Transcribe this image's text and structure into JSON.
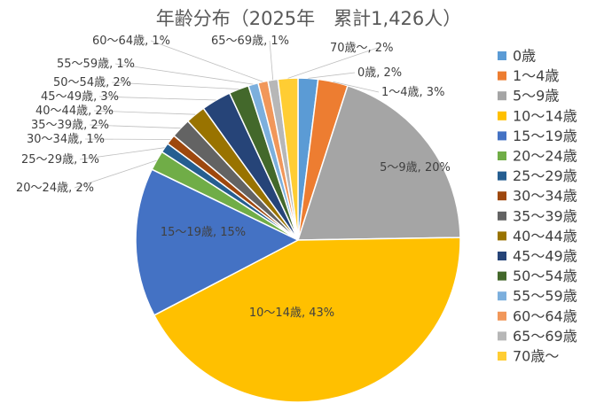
{
  "chart_data": {
    "type": "pie",
    "title": "年齢分布（2025年　累計1,426人）",
    "categories": [
      "0歳",
      "1～4歳",
      "5～9歳",
      "10～14歳",
      "15～19歳",
      "20～24歳",
      "25～29歳",
      "30～34歳",
      "35～39歳",
      "40～44歳",
      "45～49歳",
      "50～54歳",
      "55～59歳",
      "60～64歳",
      "65～69歳",
      "70歳～"
    ],
    "values": [
      2,
      3,
      20,
      43,
      15,
      2,
      1,
      1,
      2,
      2,
      3,
      2,
      1,
      1,
      1,
      2
    ],
    "value_unit": "%",
    "data_labels": [
      "0歳, 2%",
      "1～4歳, 3%",
      "5～9歳, 20%",
      "10～14歳, 43%",
      "15～19歳, 15%",
      "20～24歳, 2%",
      "25～29歳, 1%",
      "30～34歳, 1%",
      "35～39歳, 2%",
      "40～44歳, 2%",
      "45～49歳, 3%",
      "50～54歳, 2%",
      "55～59歳, 1%",
      "60～64歳, 1%",
      "65～69歳, 1%",
      "70歳～, 2%"
    ],
    "colors": [
      "#5B9BD5",
      "#ED7D31",
      "#A5A5A5",
      "#FFC000",
      "#4472C4",
      "#70AD47",
      "#255E91",
      "#9E480E",
      "#636363",
      "#997300",
      "#264478",
      "#43682B",
      "#7CAFDD",
      "#F1975A",
      "#B7B7B7",
      "#FFCD33"
    ],
    "legend_placement": "right"
  }
}
